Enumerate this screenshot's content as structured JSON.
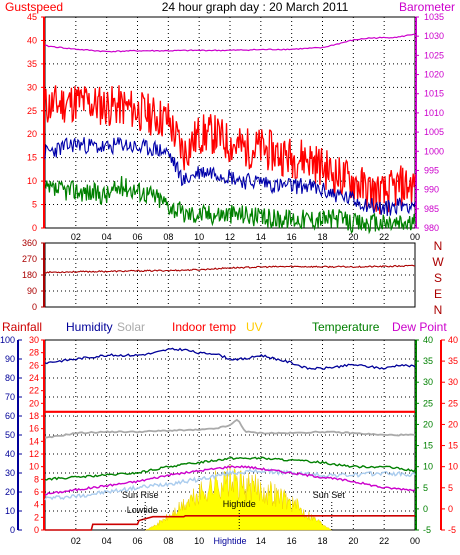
{
  "header": {
    "title": "24 hour graph day : 20 March 2011",
    "left_label": "Gustspeed",
    "right_label": "Barometer"
  },
  "colors": {
    "gust": "#ff0000",
    "avg": "#0000aa",
    "green": "#008000",
    "baro": "#cc00cc",
    "dir": "#aa0000",
    "humidity": "#000099",
    "solar": "#aaaaaa",
    "indoor": "#ff0000",
    "uv": "#ffcc00",
    "temp": "#008000",
    "dew": "#cc00cc",
    "rain": "#cc0000",
    "sun": "#ffff00",
    "lightblue": "#aaccee"
  },
  "chart_data": [
    {
      "type": "line",
      "id": "wind",
      "x_ticks": [
        "02",
        "04",
        "06",
        "08",
        "10",
        "12",
        "14",
        "16",
        "18",
        "20",
        "22",
        "00"
      ],
      "y_left": {
        "ylim": [
          0,
          45
        ],
        "ticks": [
          "0",
          "5",
          "10",
          "15",
          "20",
          "25",
          "30",
          "35",
          "40",
          "45"
        ]
      },
      "y_right": {
        "ylim": [
          980,
          1035
        ],
        "ticks": [
          "980",
          "985",
          "990",
          "995",
          "1000",
          "1005",
          "1010",
          "1015",
          "1020",
          "1025",
          "1030",
          "1035"
        ]
      },
      "series": [
        {
          "name": "Gustspeed",
          "axis": "left",
          "x": [
            0,
            2,
            4,
            5,
            6,
            7,
            8,
            9,
            10,
            11,
            12,
            13,
            14,
            15,
            16,
            17,
            18,
            19,
            20,
            21,
            22,
            23,
            24
          ],
          "y": [
            26,
            27,
            26,
            26,
            25,
            24,
            23,
            16,
            20,
            20,
            18,
            17,
            17,
            16,
            15,
            15,
            13,
            11,
            10,
            8,
            7,
            9,
            9
          ]
        },
        {
          "axis": "left",
          "x": [
            0,
            2,
            4,
            5,
            6,
            7,
            8,
            9,
            10,
            11,
            12,
            13,
            14,
            15,
            16,
            17,
            18,
            19,
            20,
            21,
            22,
            23,
            24
          ],
          "y": [
            16,
            18,
            17,
            18,
            17,
            17,
            16,
            10,
            12,
            12,
            11,
            10,
            10,
            9,
            9,
            9,
            8,
            7,
            6,
            5,
            4,
            5,
            5
          ]
        },
        {
          "axis": "left",
          "x": [
            0,
            2,
            4,
            5,
            6,
            7,
            8,
            9,
            10,
            11,
            12,
            13,
            14,
            15,
            16,
            17,
            18,
            19,
            20,
            21,
            22,
            23,
            24
          ],
          "y": [
            8,
            8,
            7,
            9,
            8,
            7,
            5,
            3,
            3,
            3,
            3,
            3,
            2,
            2,
            2,
            2,
            2,
            2,
            1,
            1,
            1,
            1,
            1
          ]
        },
        {
          "name": "Barometer",
          "axis": "right",
          "x": [
            0,
            2,
            4,
            6,
            8,
            10,
            12,
            14,
            16,
            18,
            19,
            20,
            21,
            22,
            23,
            24
          ],
          "y": [
            1027.5,
            1026.6,
            1026,
            1026.2,
            1026.2,
            1026.3,
            1026.3,
            1026.5,
            1026.6,
            1027,
            1028,
            1029,
            1029.5,
            1029.6,
            1029.8,
            1030.6
          ]
        }
      ]
    },
    {
      "type": "line",
      "id": "direction",
      "y_left": {
        "ylim": [
          0,
          360
        ],
        "ticks": [
          "0",
          "90",
          "180",
          "270",
          "360"
        ]
      },
      "compass": [
        "N",
        "W",
        "S",
        "E",
        "N"
      ],
      "series": [
        {
          "axis": "left",
          "x": [
            0,
            2,
            4,
            6,
            8,
            10,
            12,
            14,
            16,
            18,
            20,
            22,
            24
          ],
          "y": [
            195,
            198,
            200,
            203,
            205,
            210,
            220,
            225,
            228,
            226,
            226,
            228,
            232
          ]
        }
      ]
    },
    {
      "type": "line",
      "id": "climate",
      "legend": [
        "Rainfall",
        "Humidity",
        "Solar",
        "Indoor temp",
        "UV",
        "Temperature",
        "Dew Point"
      ],
      "x_ticks": [
        "02",
        "04",
        "06",
        "08",
        "10",
        "Hightide",
        "14",
        "16",
        "18",
        "20",
        "22",
        "00"
      ],
      "y_humidity": {
        "ylim": [
          0,
          100
        ],
        "ticks": [
          "0",
          "10",
          "20",
          "30",
          "40",
          "50",
          "60",
          "70",
          "80",
          "90",
          "100"
        ]
      },
      "y_solar": {
        "ylim": [
          0,
          30
        ],
        "ticks": [
          "0",
          "2",
          "4",
          "6",
          "8",
          "10",
          "12",
          "14",
          "16",
          "18",
          "20",
          "22",
          "24",
          "26",
          "28",
          "30"
        ]
      },
      "y_temp": {
        "ylim": [
          -5,
          40
        ],
        "ticks": [
          "-5",
          "0",
          "5",
          "10",
          "15",
          "20",
          "25",
          "30",
          "35",
          "40"
        ]
      },
      "annotations": [
        {
          "text": "Sun Rise",
          "hour": 6.5
        },
        {
          "text": "Lowtide",
          "hour": 6.5
        },
        {
          "text": "Hightide",
          "hour": 12.6
        },
        {
          "text": "Sun Set",
          "hour": 18.6
        }
      ],
      "series": [
        {
          "name": "Humidity",
          "axis": "humidity",
          "x": [
            0,
            2,
            4,
            6,
            7,
            8,
            9,
            10,
            11,
            12,
            13,
            14,
            15,
            16,
            17,
            18,
            19,
            20,
            21,
            22,
            23,
            24
          ],
          "y": [
            88,
            90,
            92,
            92,
            93,
            95,
            95,
            93,
            93,
            90,
            90,
            92,
            90,
            88,
            85,
            85,
            86,
            87,
            86,
            85,
            87,
            86
          ]
        },
        {
          "name": "Indoor temp",
          "axis": "temp",
          "x": [
            0,
            24
          ],
          "y": [
            23,
            23
          ]
        },
        {
          "name": "Solar",
          "axis": "solar",
          "x": [
            0,
            2,
            4,
            6,
            8,
            10,
            11,
            12,
            12.5,
            13,
            14,
            16,
            18,
            20,
            22,
            24
          ],
          "y": [
            14.5,
            15.3,
            15.5,
            15.5,
            15.7,
            15.8,
            16,
            16.5,
            17.5,
            15.5,
            15.3,
            15.3,
            15.5,
            15.3,
            15,
            15
          ]
        },
        {
          "name": "Temperature",
          "axis": "temp",
          "x": [
            0,
            2,
            4,
            6,
            8,
            10,
            12,
            14,
            16,
            18,
            20,
            22,
            24
          ],
          "y": [
            7,
            7.5,
            8,
            8.5,
            10,
            11,
            12,
            12,
            11.5,
            11,
            10,
            10,
            9
          ]
        },
        {
          "name": "Dew Point",
          "axis": "temp",
          "x": [
            0,
            2,
            4,
            6,
            8,
            10,
            12,
            13,
            14,
            16,
            18,
            20,
            22,
            24
          ],
          "y": [
            3.5,
            4.5,
            5.5,
            6.5,
            8,
            9,
            10,
            10,
            9.5,
            8.5,
            7.5,
            6.5,
            5,
            4.5
          ]
        },
        {
          "axis": "temp",
          "x": [
            0,
            2,
            4,
            6,
            8,
            10,
            12,
            14,
            16,
            18,
            20,
            22,
            24
          ],
          "y": [
            2.5,
            3,
            4,
            5,
            6,
            7,
            8.5,
            9,
            8.5,
            8,
            8,
            8.5,
            8
          ]
        },
        {
          "name": "UV",
          "axis": "humidity",
          "x": [
            6.5,
            7,
            8,
            9,
            10,
            11,
            12,
            12.5,
            13,
            14,
            15,
            16,
            17,
            18,
            18.6
          ],
          "y": [
            0,
            2,
            8,
            15,
            22,
            28,
            30,
            28,
            27,
            25,
            22,
            17,
            10,
            4,
            0
          ]
        },
        {
          "name": "Rainfall",
          "axis": "humidity",
          "x": [
            0,
            3,
            3.1,
            6,
            6.1,
            7,
            9,
            9.1,
            18.5,
            18.6,
            24
          ],
          "y": [
            0,
            0,
            3,
            3,
            5,
            7,
            7,
            7.5,
            7.5,
            7.5,
            7.5
          ]
        }
      ]
    }
  ]
}
